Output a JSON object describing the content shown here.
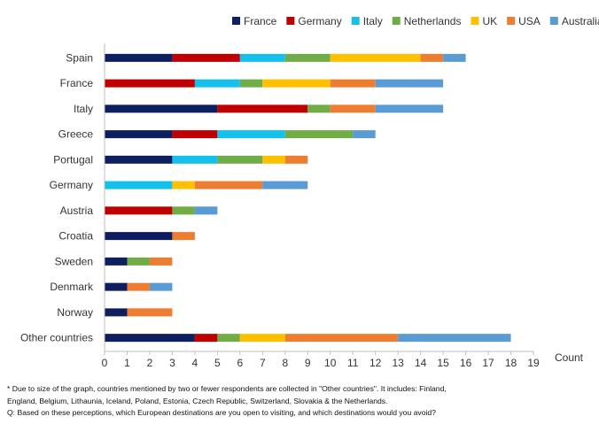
{
  "chart_data": {
    "type": "bar",
    "orientation": "horizontal",
    "stacked": true,
    "categories": [
      "Spain",
      "France",
      "Italy",
      "Greece",
      "Portugal",
      "Germany",
      "Austria",
      "Croatia",
      "Sweden",
      "Denmark",
      "Norway",
      "Other countries"
    ],
    "series": [
      {
        "name": "France",
        "color": "#0d1f5e",
        "values": [
          3,
          0,
          5,
          3,
          3,
          0,
          0,
          3,
          1,
          1,
          1,
          4
        ]
      },
      {
        "name": "Germany",
        "color": "#c00000",
        "values": [
          3,
          4,
          4,
          2,
          0,
          0,
          3,
          0,
          0,
          0,
          0,
          1
        ]
      },
      {
        "name": "Italy",
        "color": "#16c0ec",
        "values": [
          2,
          2,
          0,
          3,
          2,
          3,
          0,
          0,
          0,
          0,
          0,
          0
        ]
      },
      {
        "name": "Netherlands",
        "color": "#70ad47",
        "values": [
          2,
          1,
          1,
          3,
          2,
          0,
          1,
          0,
          1,
          0,
          0,
          1
        ]
      },
      {
        "name": "UK",
        "color": "#ffc000",
        "values": [
          4,
          3,
          0,
          0,
          1,
          1,
          0,
          0,
          0,
          0,
          0,
          2
        ]
      },
      {
        "name": "USA",
        "color": "#ed7d31",
        "values": [
          1,
          2,
          2,
          0,
          1,
          3,
          0,
          1,
          1,
          1,
          2,
          5
        ]
      },
      {
        "name": "Australia",
        "color": "#5b9bd5",
        "values": [
          1,
          3,
          3,
          1,
          0,
          2,
          1,
          0,
          0,
          1,
          0,
          5
        ]
      }
    ],
    "xlabel": "Count",
    "xlim": [
      0,
      19
    ],
    "xticks": [
      0,
      1,
      2,
      3,
      4,
      5,
      6,
      7,
      8,
      9,
      10,
      11,
      12,
      13,
      14,
      15,
      16,
      17,
      18,
      19
    ],
    "grid": false,
    "legend_position": "top-right"
  },
  "footnotes": {
    "line1": "* Due to size of the graph, countries mentioned by two or fewer respondents are collected in \"Other countries\". It includes: Finland,",
    "line2": "England, Belgium, Lithaunia, Iceland, Poland, Estonia, Czech Republic, Switzerland, Slovakia & the Netherlands.",
    "line3": "Q: Based on these perceptions, which European destinations are you open to visiting, and which destinations would you avoid?"
  }
}
